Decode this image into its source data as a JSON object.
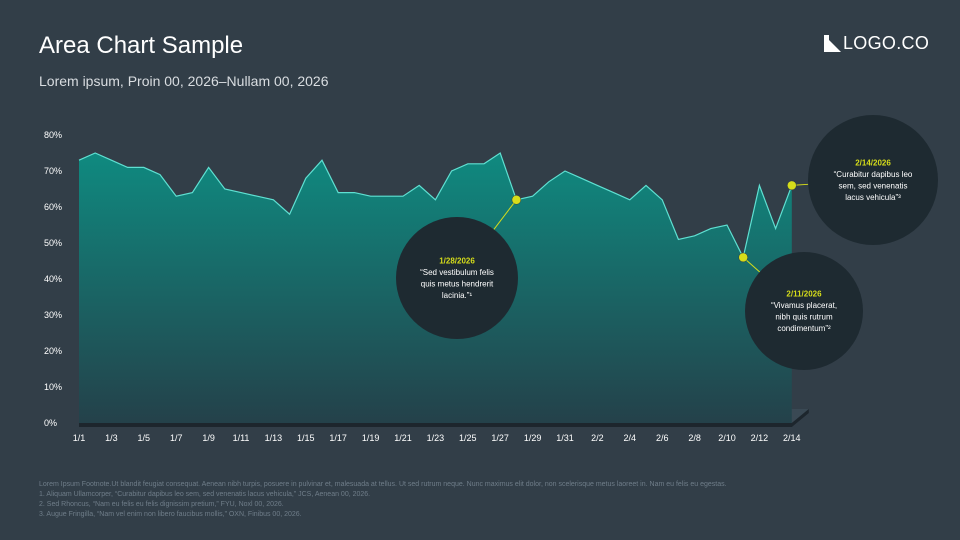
{
  "header": {
    "title": "Area Chart Sample",
    "subtitle": "Lorem ipsum, Proin 00, 2026–Nullam 00, 2026",
    "logo_text": "LOGO.CO"
  },
  "colors": {
    "background": "#323e48",
    "area_top": "#0f8a80",
    "area_bottom": "#24414a",
    "line": "#5fe0d2",
    "marker": "#d6dd1a",
    "bubble": "#1e2a31",
    "bubble_date": "#d6dd1a"
  },
  "chart_data": {
    "type": "area",
    "x_ticks": [
      "1/1",
      "1/3",
      "1/5",
      "1/7",
      "1/9",
      "1/11",
      "1/13",
      "1/15",
      "1/17",
      "1/19",
      "1/21",
      "1/23",
      "1/25",
      "1/27",
      "1/29",
      "1/31",
      "2/2",
      "2/4",
      "2/6",
      "2/8",
      "2/10",
      "2/12",
      "2/14"
    ],
    "y_ticks": [
      "0%",
      "10%",
      "20%",
      "30%",
      "40%",
      "50%",
      "60%",
      "70%",
      "80%"
    ],
    "ylim": [
      0,
      80
    ],
    "x": [
      "1/1",
      "1/2",
      "1/3",
      "1/4",
      "1/5",
      "1/6",
      "1/7",
      "1/8",
      "1/9",
      "1/10",
      "1/11",
      "1/12",
      "1/13",
      "1/14",
      "1/15",
      "1/16",
      "1/17",
      "1/18",
      "1/19",
      "1/20",
      "1/21",
      "1/22",
      "1/23",
      "1/24",
      "1/25",
      "1/26",
      "1/27",
      "1/28",
      "1/29",
      "1/30",
      "1/31",
      "2/1",
      "2/2",
      "2/3",
      "2/4",
      "2/5",
      "2/6",
      "2/7",
      "2/8",
      "2/9",
      "2/10",
      "2/11",
      "2/12",
      "2/13",
      "2/14"
    ],
    "values": [
      73,
      75,
      73,
      71,
      71,
      69,
      63,
      64,
      71,
      65,
      64,
      63,
      62,
      58,
      68,
      73,
      64,
      64,
      63,
      63,
      63,
      66,
      62,
      70,
      72,
      72,
      75,
      62,
      63,
      67,
      70,
      68,
      66,
      64,
      62,
      66,
      62,
      51,
      52,
      54,
      55,
      46,
      66,
      54,
      66
    ],
    "annotations": [
      {
        "index": 27,
        "date": "1/28/2026",
        "text": "“Sed vestibulum felis quis metus hendrerit lacinia.”¹"
      },
      {
        "index": 41,
        "date": "2/11/2026",
        "text": "“Vivamus placerat, nibh quis rutrum condimentum”²"
      },
      {
        "index": 44,
        "date": "2/14/2026",
        "text": "“Curabitur dapibus leo sem, sed venenatis lacus vehicula”³"
      }
    ]
  },
  "footnotes": [
    "Lorem Ipsum Footnote.Ut blandit feugiat consequat. Aenean nibh turpis, posuere in pulvinar et, malesuada at tellus. Ut sed rutrum neque. Nunc maximus elit dolor, non scelerisque metus laoreet in. Nam eu felis eu egestas.",
    "1. Aliquam Ullamcorper, “Curabitur dapibus leo sem, sed venenatis lacus vehicula,” JCS, Aenean 00, 2026.",
    "2. Sed Rhoncus, “Nam eu felis eu felis dignissim pretium,” FYU, Noxl 00, 2026.",
    "3. Augue Fringilla, “Nam vel enim non libero faucibus mollis,” OXN, Finibus 00, 2026."
  ]
}
